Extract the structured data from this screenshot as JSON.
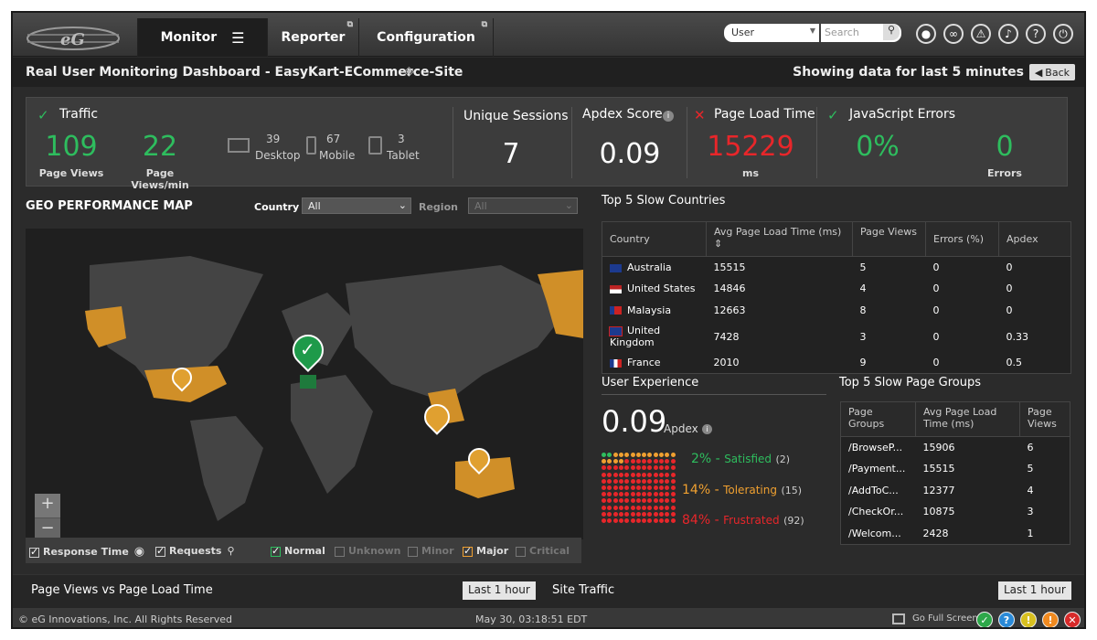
{
  "nav": {
    "monitor": "Monitor",
    "reporter": "Reporter",
    "configuration": "Configuration"
  },
  "toolbar": {
    "user_select": "User",
    "search_placeholder": "Search"
  },
  "header": {
    "title": "Real User Monitoring Dashboard - EasyKart-ECommerce-Site",
    "showing": "Showing data for last 5 minutes",
    "back": "Back"
  },
  "summary": {
    "traffic": "Traffic",
    "page_views": "109",
    "page_views_label": "Page Views",
    "page_views_min": "22",
    "page_views_min_label": "Page Views/min",
    "desktop": "39",
    "desktop_label": "Desktop",
    "mobile": "67",
    "mobile_label": "Mobile",
    "tablet": "3",
    "tablet_label": "Tablet",
    "unique_sessions_label": "Unique Sessions",
    "unique_sessions": "7",
    "apdex_label": "Apdex Score",
    "apdex": "0.09",
    "page_load_label": "Page Load Time",
    "page_load": "15229",
    "page_load_unit": "ms",
    "js_errors_label": "JavaScript Errors",
    "js_errors_pct": "0%",
    "js_errors": "0",
    "errors_label": "Errors"
  },
  "geo": {
    "title": "GEO PERFORMANCE MAP",
    "country_label": "Country",
    "country_value": "All",
    "region_label": "Region",
    "region_value": "All",
    "legend": {
      "response_time": "Response Time",
      "requests": "Requests",
      "normal": "Normal",
      "unknown": "Unknown",
      "minor": "Minor",
      "major": "Major",
      "critical": "Critical"
    }
  },
  "slow_countries": {
    "title": "Top 5 Slow Countries",
    "headers": [
      "Country",
      "Avg Page Load Time (ms)",
      "Page Views",
      "Errors (%)",
      "Apdex"
    ],
    "rows": [
      {
        "country": "Australia",
        "load": "15515",
        "views": "5",
        "errors": "0",
        "apdex": "0"
      },
      {
        "country": "United States",
        "load": "14846",
        "views": "4",
        "errors": "0",
        "apdex": "0"
      },
      {
        "country": "Malaysia",
        "load": "12663",
        "views": "8",
        "errors": "0",
        "apdex": "0"
      },
      {
        "country": "United Kingdom",
        "load": "7428",
        "views": "3",
        "errors": "0",
        "apdex": "0.33"
      },
      {
        "country": "France",
        "load": "2010",
        "views": "9",
        "errors": "0",
        "apdex": "0.5"
      }
    ]
  },
  "user_experience": {
    "title": "User Experience",
    "apdex": "0.09",
    "apdex_label": "Apdex",
    "satisfied_pct": "2%",
    "satisfied_label": "Satisfied",
    "satisfied_count": "(2)",
    "tolerating_pct": "14%",
    "tolerating_label": "Tolerating",
    "tolerating_count": "(15)",
    "frustrated_pct": "84%",
    "frustrated_label": "Frustrated",
    "frustrated_count": "(92)",
    "dash": "-"
  },
  "slow_pages": {
    "title": "Top 5 Slow Page Groups",
    "headers": [
      "Page Groups",
      "Avg Page Load Time (ms)",
      "Page Views"
    ],
    "rows": [
      {
        "group": "/BrowseP...",
        "load": "15906",
        "views": "6"
      },
      {
        "group": "/Payment...",
        "load": "15515",
        "views": "5"
      },
      {
        "group": "/AddToC...",
        "load": "12377",
        "views": "4"
      },
      {
        "group": "/CheckOr...",
        "load": "10875",
        "views": "3"
      },
      {
        "group": "/Welcom...",
        "load": "2428",
        "views": "1"
      }
    ]
  },
  "bottom": {
    "page_views_vs_load": "Page Views vs Page Load Time",
    "last_hour": "Last 1 hour",
    "site_traffic": "Site Traffic"
  },
  "footer": {
    "copyright": "© eG Innovations, Inc. All Rights Reserved",
    "datetime": "May 30, 03:18:51 EDT",
    "fullscreen": "Go Full Screen"
  }
}
